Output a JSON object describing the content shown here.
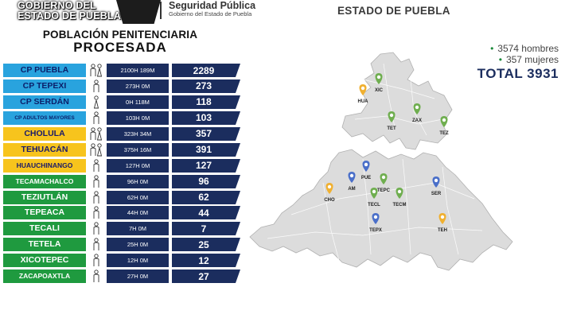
{
  "header": {
    "gov_line1": "GOBIERNO DEL",
    "gov_line2": "ESTADO DE PUEBLA",
    "seg_title": "Seguridad Pública",
    "seg_sub": "Gobierno del Estado de Puebla",
    "state_title": "ESTADO DE PUEBLA"
  },
  "title": {
    "line1": "POBLACIÓN PENITENCIARIA",
    "line2": "PROCESADA"
  },
  "rows": [
    {
      "name": "CP PUEBLA",
      "hm": "2100H 189M",
      "total": "2289",
      "color": "blue",
      "people": "couple",
      "fs": "big"
    },
    {
      "name": "CP TEPEXI",
      "hm": "273H 0M",
      "total": "273",
      "color": "blue",
      "people": "man",
      "fs": "big"
    },
    {
      "name": "CP SERDÁN",
      "hm": "0H 118M",
      "total": "118",
      "color": "blue",
      "people": "woman",
      "fs": "big"
    },
    {
      "name": "CP ADULTOS MAYORES",
      "hm": "103H 0M",
      "total": "103",
      "color": "blue",
      "people": "man",
      "fs": "sm"
    },
    {
      "name": "CHOLULA",
      "hm": "323H 34M",
      "total": "357",
      "color": "yellow",
      "people": "couple",
      "fs": "big"
    },
    {
      "name": "TEHUACÁN",
      "hm": "375H 16M",
      "total": "391",
      "color": "yellow",
      "people": "couple",
      "fs": "big"
    },
    {
      "name": "HUAUCHINANGO",
      "hm": "127H 0M",
      "total": "127",
      "color": "yellow",
      "people": "man",
      "fs": "mid"
    },
    {
      "name": "TECAMACHALCO",
      "hm": "96H 0M",
      "total": "96",
      "color": "green",
      "people": "man",
      "fs": "mid"
    },
    {
      "name": "TEZIUTLÁN",
      "hm": "62H 0M",
      "total": "62",
      "color": "green",
      "people": "man",
      "fs": "big"
    },
    {
      "name": "TEPEACA",
      "hm": "44H 0M",
      "total": "44",
      "color": "green",
      "people": "man",
      "fs": "big"
    },
    {
      "name": "TECALI",
      "hm": "7H 0M",
      "total": "7",
      "color": "green",
      "people": "man",
      "fs": "big"
    },
    {
      "name": "TETELA",
      "hm": "25H 0M",
      "total": "25",
      "color": "green",
      "people": "man",
      "fs": "big"
    },
    {
      "name": "XICOTEPEC",
      "hm": "12H 0M",
      "total": "12",
      "color": "green",
      "people": "man",
      "fs": "big"
    },
    {
      "name": "ZACAPOAXTLA",
      "hm": "27H 0M",
      "total": "27",
      "color": "green",
      "people": "man",
      "fs": "mid"
    }
  ],
  "stats": {
    "men": "3574 hombres",
    "women": "357 mujeres",
    "total": "TOTAL 3931",
    "bullet": "•"
  },
  "map_pins": [
    {
      "label": "XIC",
      "color": "#6fae4f"
    },
    {
      "label": "HUA",
      "color": "#f0b030"
    },
    {
      "label": "ZAX",
      "color": "#6fae4f"
    },
    {
      "label": "TET",
      "color": "#6fae4f"
    },
    {
      "label": "TEZ",
      "color": "#6fae4f"
    },
    {
      "label": "PUE",
      "color": "#4a6fc9"
    },
    {
      "label": "AM",
      "color": "#4a6fc9"
    },
    {
      "label": "TEPC",
      "color": "#6fae4f"
    },
    {
      "label": "CHO",
      "color": "#f0b030"
    },
    {
      "label": "TECL",
      "color": "#6fae4f"
    },
    {
      "label": "TECM",
      "color": "#6fae4f"
    },
    {
      "label": "SER",
      "color": "#4a6fc9"
    },
    {
      "label": "TEPX",
      "color": "#4a6fc9"
    },
    {
      "label": "TEH",
      "color": "#f0b030"
    }
  ]
}
